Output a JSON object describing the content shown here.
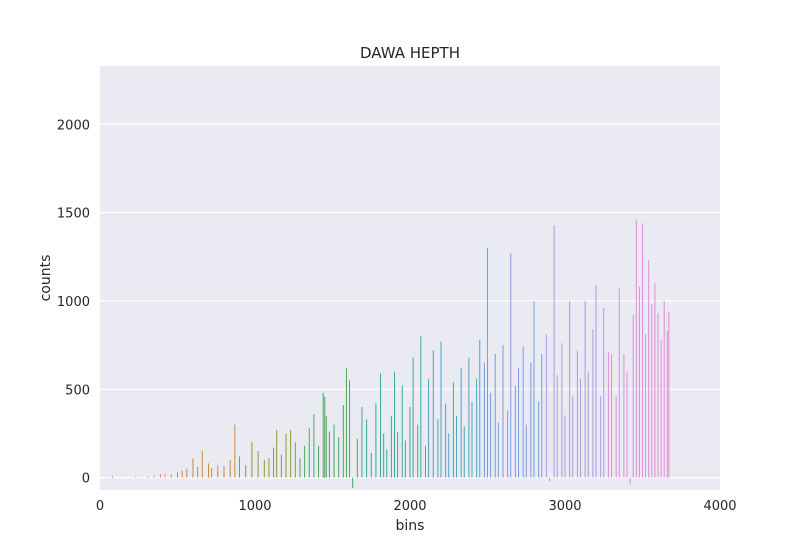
{
  "chart_data": {
    "type": "bar",
    "title": "DAWA HEPTH",
    "xlabel": "bins",
    "ylabel": "counts",
    "xlim": [
      0,
      4000
    ],
    "ylim": [
      -70,
      2330
    ],
    "x_ticks": [
      0,
      1000,
      2000,
      3000,
      4000
    ],
    "y_ticks": [
      0,
      500,
      1000,
      1500,
      2000
    ],
    "grid": true,
    "style": "seaborn-darkgrid",
    "palette": [
      "#e08a8a",
      "#c98a3a",
      "#8a9a30",
      "#4aa85a",
      "#3aab96",
      "#4aa6c0",
      "#7a9ce0",
      "#b098e0",
      "#e08ad8"
    ],
    "bin_width": 10,
    "x": [
      80,
      230,
      310,
      350,
      390,
      420,
      460,
      500,
      530,
      560,
      600,
      630,
      660,
      700,
      720,
      760,
      800,
      840,
      870,
      900,
      940,
      980,
      1020,
      1060,
      1090,
      1120,
      1140,
      1170,
      1200,
      1230,
      1260,
      1290,
      1320,
      1350,
      1380,
      1410,
      1440,
      1450,
      1460,
      1480,
      1510,
      1540,
      1570,
      1590,
      1610,
      1630,
      1660,
      1690,
      1720,
      1750,
      1780,
      1810,
      1830,
      1850,
      1880,
      1900,
      1920,
      1950,
      1970,
      2000,
      2020,
      2050,
      2070,
      2100,
      2120,
      2150,
      2180,
      2200,
      2230,
      2250,
      2280,
      2300,
      2330,
      2350,
      2380,
      2400,
      2430,
      2450,
      2480,
      2500,
      2520,
      2550,
      2570,
      2600,
      2630,
      2650,
      2680,
      2700,
      2730,
      2750,
      2780,
      2800,
      2830,
      2850,
      2880,
      2900,
      2930,
      2950,
      2980,
      3000,
      3030,
      3050,
      3080,
      3100,
      3130,
      3150,
      3180,
      3200,
      3230,
      3250,
      3280,
      3300,
      3330,
      3350,
      3380,
      3400,
      3420,
      3440,
      3460,
      3480,
      3500,
      3520,
      3540,
      3560,
      3580,
      3600,
      3620,
      3640,
      3660,
      3670
    ],
    "values": [
      10,
      5,
      8,
      12,
      20,
      25,
      18,
      30,
      40,
      50,
      110,
      60,
      150,
      80,
      55,
      70,
      65,
      100,
      300,
      120,
      70,
      200,
      150,
      100,
      110,
      170,
      270,
      130,
      250,
      270,
      200,
      110,
      180,
      280,
      360,
      180,
      480,
      460,
      350,
      260,
      300,
      230,
      410,
      620,
      550,
      -60,
      220,
      400,
      330,
      140,
      420,
      590,
      250,
      160,
      350,
      600,
      260,
      520,
      210,
      400,
      680,
      300,
      800,
      180,
      560,
      720,
      330,
      770,
      420,
      250,
      540,
      350,
      620,
      290,
      680,
      430,
      560,
      780,
      650,
      1300,
      480,
      700,
      310,
      750,
      380,
      1270,
      520,
      620,
      740,
      300,
      650,
      1000,
      430,
      700,
      810,
      -20,
      1430,
      580,
      760,
      350,
      1000,
      460,
      720,
      560,
      1000,
      600,
      840,
      1090,
      460,
      960,
      710,
      700,
      460,
      1070,
      700,
      600,
      -40,
      920,
      1460,
      1080,
      1440,
      810,
      1230,
      980,
      1100,
      930,
      780,
      1000,
      830,
      940
    ]
  }
}
